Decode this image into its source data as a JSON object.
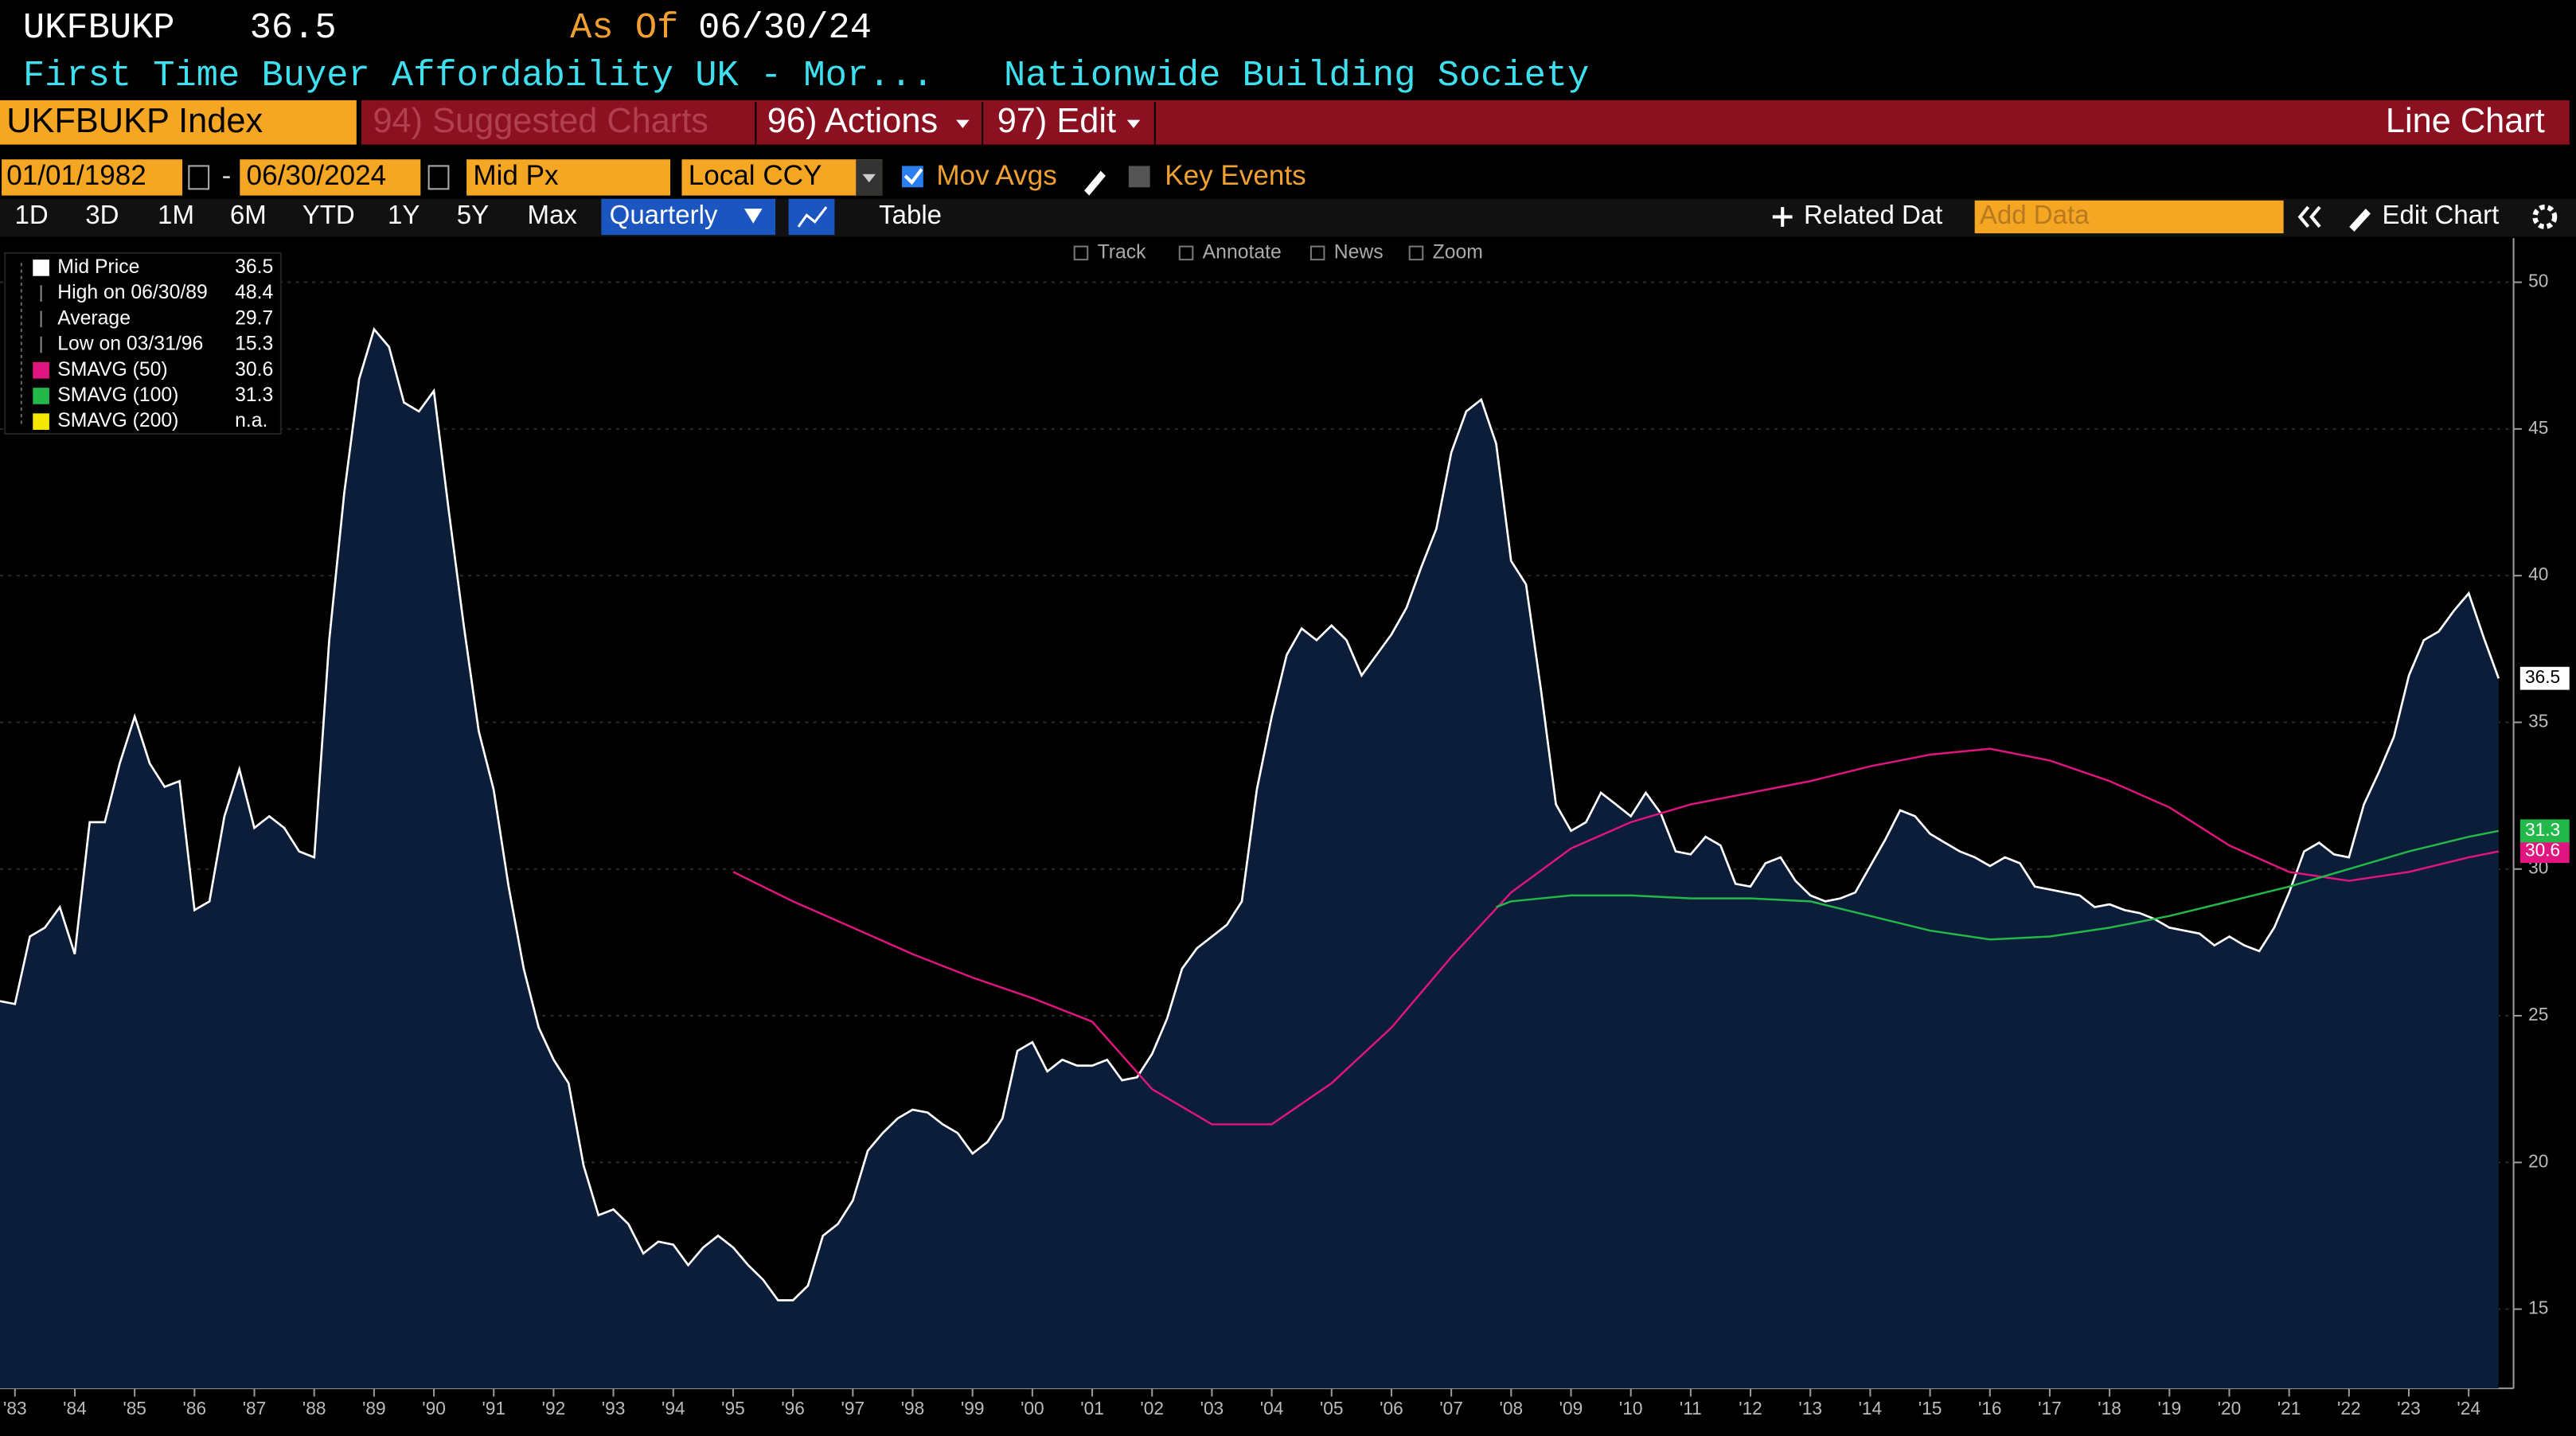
{
  "ui": {
    "header": {
      "ticker": "UKFBUKP",
      "price": 36.5,
      "as_of_label": "As Of",
      "as_of_date": "06/30/24",
      "description": "First Time Buyer Affordability UK - Mor...",
      "source": "Nationwide Building Society"
    },
    "menu": {
      "security": "UKFBUKP Index",
      "suggested": "94) Suggested Charts",
      "actions": "96) Actions",
      "edit": "97) Edit",
      "chart_type": "Line Chart"
    },
    "controls": {
      "start_date": "01/01/1982",
      "separator": "-",
      "end_date": "06/30/2024",
      "field": "Mid Px",
      "currency": "Local CCY",
      "mov_avgs": "Mov Avgs",
      "key_events": "Key Events"
    },
    "ranges": [
      "1D",
      "3D",
      "1M",
      "6M",
      "YTD",
      "1Y",
      "5Y",
      "Max"
    ],
    "frequency": "Quarterly",
    "table": "Table",
    "related": "Related Dat",
    "add_data": "Add Data",
    "edit_chart": "Edit Chart",
    "chart_tools": [
      "Track",
      "Annotate",
      "News",
      "Zoom"
    ]
  },
  "chart_data": {
    "type": "line",
    "legend": [
      {
        "label": "Mid Price",
        "value": 36.5,
        "color": "#ffffff"
      },
      {
        "label": "High on 06/30/89",
        "value": 48.4
      },
      {
        "label": "Average",
        "value": 29.7
      },
      {
        "label": "Low on 03/31/96",
        "value": 15.3
      },
      {
        "label": "SMAVG (50)",
        "value": 30.6,
        "color": "#e0157f"
      },
      {
        "label": "SMAVG (100)",
        "value": 31.3,
        "color": "#22b84a"
      },
      {
        "label": "SMAVG (200)",
        "value": "n.a.",
        "color": "#f5e800"
      }
    ],
    "series": [
      {
        "color": "#ffffff",
        "fill": "#0b1d38",
        "x": [
          1982.75,
          1983,
          1983.25,
          1983.5,
          1983.75,
          1984,
          1984.25,
          1984.5,
          1984.75,
          1985,
          1985.25,
          1985.5,
          1985.75,
          1986,
          1986.25,
          1986.5,
          1986.75,
          1987,
          1987.25,
          1987.5,
          1987.75,
          1988,
          1988.25,
          1988.5,
          1988.75,
          1989,
          1989.25,
          1989.5,
          1989.75,
          1990,
          1990.25,
          1990.5,
          1990.75,
          1991,
          1991.25,
          1991.5,
          1991.75,
          1992,
          1992.25,
          1992.5,
          1992.75,
          1993,
          1993.25,
          1993.5,
          1993.75,
          1994,
          1994.25,
          1994.5,
          1994.75,
          1995,
          1995.25,
          1995.5,
          1995.75,
          1996,
          1996.25,
          1996.5,
          1996.75,
          1997,
          1997.25,
          1997.5,
          1997.75,
          1998,
          1998.25,
          1998.5,
          1998.75,
          1999,
          1999.25,
          1999.5,
          1999.75,
          2000,
          2000.25,
          2000.5,
          2000.75,
          2001,
          2001.25,
          2001.5,
          2001.75,
          2002,
          2002.25,
          2002.5,
          2002.75,
          2003,
          2003.25,
          2003.5,
          2003.75,
          2004,
          2004.25,
          2004.5,
          2004.75,
          2005,
          2005.25,
          2005.5,
          2005.75,
          2006,
          2006.25,
          2006.5,
          2006.75,
          2007,
          2007.25,
          2007.5,
          2007.75,
          2008,
          2008.25,
          2008.5,
          2008.75,
          2009,
          2009.25,
          2009.5,
          2009.75,
          2010,
          2010.25,
          2010.5,
          2010.75,
          2011,
          2011.25,
          2011.5,
          2011.75,
          2012,
          2012.25,
          2012.5,
          2012.75,
          2013,
          2013.25,
          2013.5,
          2013.75,
          2014,
          2014.25,
          2014.5,
          2014.75,
          2015,
          2015.25,
          2015.5,
          2015.75,
          2016,
          2016.25,
          2016.5,
          2016.75,
          2017,
          2017.25,
          2017.5,
          2017.75,
          2018,
          2018.25,
          2018.5,
          2018.75,
          2019,
          2019.25,
          2019.5,
          2019.75,
          2020,
          2020.25,
          2020.5,
          2020.75,
          2021,
          2021.25,
          2021.5,
          2021.75,
          2022,
          2022.25,
          2022.5,
          2022.75,
          2023,
          2023.25,
          2023.5,
          2023.75,
          2024,
          2024.25,
          2024.5
        ],
        "values": [
          25.5,
          25.4,
          27.7,
          28.0,
          28.7,
          27.1,
          31.6,
          31.6,
          33.6,
          35.2,
          33.6,
          32.8,
          33.0,
          28.6,
          28.9,
          31.8,
          33.4,
          31.4,
          31.8,
          31.4,
          30.6,
          30.4,
          37.8,
          42.8,
          46.7,
          48.4,
          47.8,
          45.9,
          45.6,
          46.3,
          42.2,
          38.3,
          34.7,
          32.7,
          29.4,
          26.6,
          24.6,
          23.5,
          22.7,
          19.9,
          18.2,
          18.4,
          17.9,
          16.9,
          17.3,
          17.2,
          16.5,
          17.1,
          17.5,
          17.1,
          16.5,
          16.0,
          15.3,
          15.3,
          15.8,
          17.5,
          17.9,
          18.7,
          20.4,
          21.0,
          21.5,
          21.8,
          21.7,
          21.3,
          21.0,
          20.3,
          20.7,
          21.5,
          23.8,
          24.1,
          23.1,
          23.5,
          23.3,
          23.3,
          23.5,
          22.8,
          22.9,
          23.7,
          24.9,
          26.6,
          27.3,
          27.7,
          28.1,
          28.9,
          32.7,
          35.2,
          37.3,
          38.2,
          37.8,
          38.3,
          37.8,
          36.6,
          37.3,
          38.0,
          38.9,
          40.3,
          41.6,
          44.2,
          45.6,
          46.0,
          44.5,
          40.5,
          39.7,
          36.1,
          32.2,
          31.3,
          31.6,
          32.6,
          32.2,
          31.8,
          32.6,
          31.9,
          30.6,
          30.5,
          31.1,
          30.8,
          29.5,
          29.4,
          30.2,
          30.4,
          29.6,
          29.1,
          28.9,
          29.0,
          29.2,
          30.1,
          31.0,
          32.0,
          31.8,
          31.2,
          30.9,
          30.6,
          30.4,
          30.1,
          30.4,
          30.2,
          29.4,
          29.3,
          29.2,
          29.1,
          28.7,
          28.8,
          28.6,
          28.5,
          28.3,
          28.0,
          27.9,
          27.8,
          27.4,
          27.7,
          27.4,
          27.2,
          28.0,
          29.2,
          30.6,
          30.9,
          30.5,
          30.4,
          32.2,
          33.3,
          34.5,
          36.6,
          37.8,
          38.1,
          38.8,
          39.4,
          37.9,
          36.5
        ]
      },
      {
        "color": "#e0157f",
        "x": [
          1995,
          1996,
          1997,
          1998,
          1999,
          2000,
          2001,
          2002,
          2003,
          2004,
          2005,
          2006,
          2007,
          2008,
          2009,
          2010,
          2011,
          2012,
          2013,
          2014,
          2015,
          2016,
          2017,
          2018,
          2019,
          2020,
          2021,
          2022,
          2023,
          2024,
          2024.5
        ],
        "values": [
          29.9,
          28.9,
          28.0,
          27.1,
          26.3,
          25.6,
          24.8,
          22.5,
          21.3,
          21.3,
          22.7,
          24.6,
          27.0,
          29.2,
          30.7,
          31.6,
          32.2,
          32.6,
          33.0,
          33.5,
          33.9,
          34.1,
          33.7,
          33.0,
          32.1,
          30.8,
          29.9,
          29.6,
          29.9,
          30.4,
          30.6
        ]
      },
      {
        "color": "#22b84a",
        "x": [
          2007.75,
          2008,
          2009,
          2010,
          2011,
          2012,
          2013,
          2014,
          2015,
          2016,
          2017,
          2018,
          2019,
          2020,
          2021,
          2022,
          2023,
          2024,
          2024.5
        ],
        "values": [
          28.7,
          28.9,
          29.1,
          29.1,
          29.0,
          29.0,
          28.9,
          28.4,
          27.9,
          27.6,
          27.7,
          28.0,
          28.4,
          28.9,
          29.4,
          30.0,
          30.6,
          31.1,
          31.3
        ]
      }
    ],
    "xlim": [
      1982.75,
      2024.75
    ],
    "xticks": [
      {
        "value": 1983,
        "label": "'83"
      },
      {
        "value": 1984,
        "label": "'84"
      },
      {
        "value": 1985,
        "label": "'85"
      },
      {
        "value": 1986,
        "label": "'86"
      },
      {
        "value": 1987,
        "label": "'87"
      },
      {
        "value": 1988,
        "label": "'88"
      },
      {
        "value": 1989,
        "label": "'89"
      },
      {
        "value": 1990,
        "label": "'90"
      },
      {
        "value": 1991,
        "label": "'91"
      },
      {
        "value": 1992,
        "label": "'92"
      },
      {
        "value": 1993,
        "label": "'93"
      },
      {
        "value": 1994,
        "label": "'94"
      },
      {
        "value": 1995,
        "label": "'95"
      },
      {
        "value": 1996,
        "label": "'96"
      },
      {
        "value": 1997,
        "label": "'97"
      },
      {
        "value": 1998,
        "label": "'98"
      },
      {
        "value": 1999,
        "label": "'99"
      },
      {
        "value": 2000,
        "label": "'00"
      },
      {
        "value": 2001,
        "label": "'01"
      },
      {
        "value": 2002,
        "label": "'02"
      },
      {
        "value": 2003,
        "label": "'03"
      },
      {
        "value": 2004,
        "label": "'04"
      },
      {
        "value": 2005,
        "label": "'05"
      },
      {
        "value": 2006,
        "label": "'06"
      },
      {
        "value": 2007,
        "label": "'07"
      },
      {
        "value": 2008,
        "label": "'08"
      },
      {
        "value": 2009,
        "label": "'09"
      },
      {
        "value": 2010,
        "label": "'10"
      },
      {
        "value": 2011,
        "label": "'11"
      },
      {
        "value": 2012,
        "label": "'12"
      },
      {
        "value": 2013,
        "label": "'13"
      },
      {
        "value": 2014,
        "label": "'14"
      },
      {
        "value": 2015,
        "label": "'15"
      },
      {
        "value": 2016,
        "label": "'16"
      },
      {
        "value": 2017,
        "label": "'17"
      },
      {
        "value": 2018,
        "label": "'18"
      },
      {
        "value": 2019,
        "label": "'19"
      },
      {
        "value": 2020,
        "label": "'20"
      },
      {
        "value": 2021,
        "label": "'21"
      },
      {
        "value": 2022,
        "label": "'22"
      },
      {
        "value": 2023,
        "label": "'23"
      },
      {
        "value": 2024,
        "label": "'24"
      }
    ],
    "ylim": [
      12.3,
      51.5
    ],
    "yticks": [
      15,
      20,
      25,
      30,
      35,
      40,
      45,
      50
    ],
    "grid": true
  }
}
